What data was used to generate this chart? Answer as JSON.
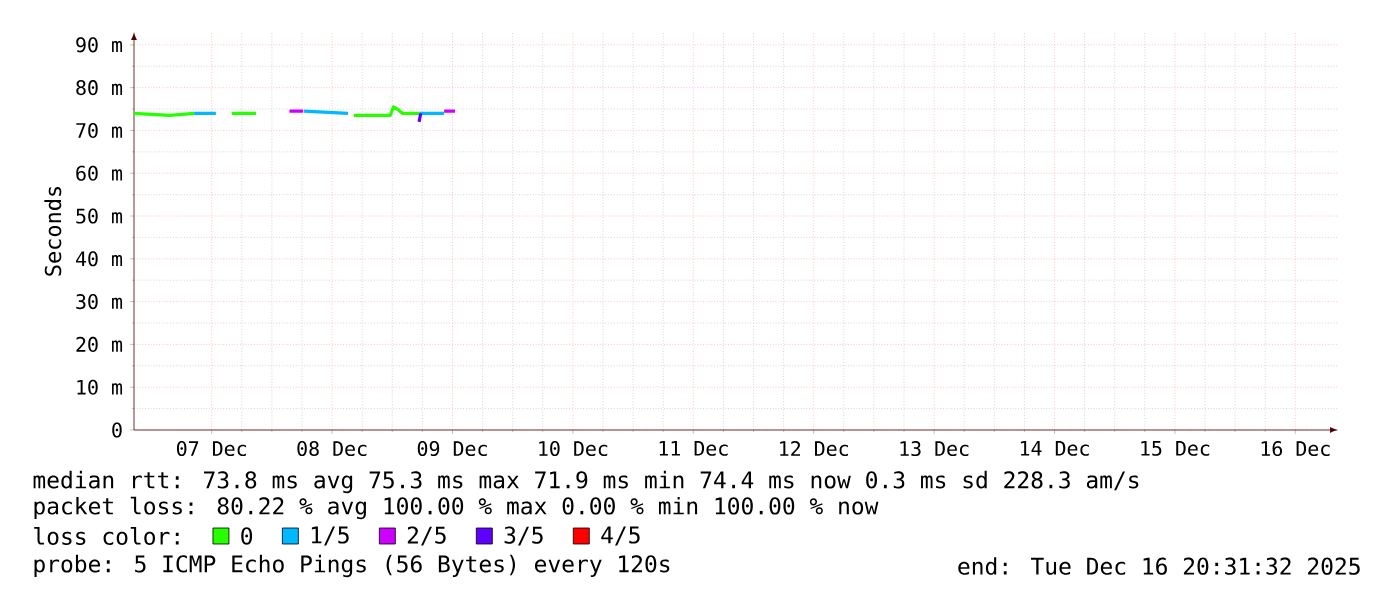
{
  "chart_data": {
    "type": "line",
    "ylabel": "Seconds",
    "legend_title": "loss color:",
    "legend": "bottom",
    "line_style": "solid",
    "grid": true,
    "xlim": [
      "2025-12-06T20:31",
      "2025-12-16T20:31"
    ],
    "ylim": [
      0,
      93
    ],
    "xticks": [
      {
        "value": "2025-12-07T12:00",
        "label": "07 Dec"
      },
      {
        "value": "2025-12-08T12:00",
        "label": "08 Dec"
      },
      {
        "value": "2025-12-09T12:00",
        "label": "09 Dec"
      },
      {
        "value": "2025-12-10T12:00",
        "label": "10 Dec"
      },
      {
        "value": "2025-12-11T12:00",
        "label": "11 Dec"
      },
      {
        "value": "2025-12-12T12:00",
        "label": "12 Dec"
      },
      {
        "value": "2025-12-13T12:00",
        "label": "13 Dec"
      },
      {
        "value": "2025-12-14T12:00",
        "label": "14 Dec"
      },
      {
        "value": "2025-12-15T12:00",
        "label": "15 Dec"
      },
      {
        "value": "2025-12-16T12:00",
        "label": "16 Dec"
      }
    ],
    "yticks": [
      0,
      {
        "value": 10,
        "label": "10 m"
      },
      {
        "value": 20,
        "label": "20 m"
      },
      {
        "value": 30,
        "label": "30 m"
      },
      {
        "value": 40,
        "label": "40 m"
      },
      {
        "value": 50,
        "label": "50 m"
      },
      {
        "value": 60,
        "label": "60 m"
      },
      {
        "value": 70,
        "label": "70 m"
      },
      {
        "value": 80,
        "label": "80 m"
      },
      {
        "value": 90,
        "label": "90 m"
      }
    ],
    "series": [
      {
        "name": "0",
        "color": "#26ff00",
        "x": [
          "2025-12-06T20:31",
          "2025-12-07T03:40",
          "2025-12-07T08:30",
          "2025-12-07T10:00",
          "2025-12-07T16:00",
          "2025-12-07T20:50",
          "2025-12-08T03:00",
          "2025-12-08T16:20",
          "2025-12-08T23:35",
          "2025-12-09T00:15",
          "2025-12-09T01:00",
          "2025-12-09T02:00",
          "2025-12-09T05:30"
        ],
        "values": [
          74,
          73.5,
          74,
          null,
          74,
          74,
          null,
          73.5,
          73.5,
          75.5,
          75,
          74,
          74
        ]
      },
      {
        "name": "1/5",
        "color": "#00b8ff",
        "x": [
          "2025-12-07T08:30",
          "2025-12-07T12:50",
          "2025-12-07T14:00",
          "2025-12-08T06:25",
          "2025-12-08T15:10",
          "2025-12-08T16:00",
          "2025-12-09T05:30",
          "2025-12-09T06:30",
          "2025-12-09T10:20"
        ],
        "values": [
          74,
          74,
          null,
          74.5,
          74,
          null,
          74,
          74,
          74
        ]
      },
      {
        "name": "2/5",
        "color": "#cc00ff",
        "x": [
          "2025-12-08T03:30",
          "2025-12-08T06:15",
          "2025-12-08T07:00",
          "2025-12-09T10:20",
          "2025-12-09T12:30"
        ],
        "values": [
          74.5,
          74.5,
          null,
          74.5,
          74.5
        ]
      },
      {
        "name": "3/5",
        "color": "#5f00ff",
        "x": [
          "2025-12-09T05:20",
          "2025-12-09T05:40"
        ],
        "values": [
          72,
          74
        ]
      },
      {
        "name": "4/5",
        "color": "#ff0000"
      }
    ],
    "annotations": [
      "median rtt: 73.8 ms avg 75.3 ms max 71.9 ms min 74.4 ms now 0.3 ms sd 228.3 am/s",
      "packet loss: 80.22 % avg 100.00 % max 0.00 % min 100.00 % now",
      "probe: 5 ICMP Echo Pings (56 Bytes) every 120s",
      "end: Tue Dec 16 20:31:32 2025"
    ]
  }
}
